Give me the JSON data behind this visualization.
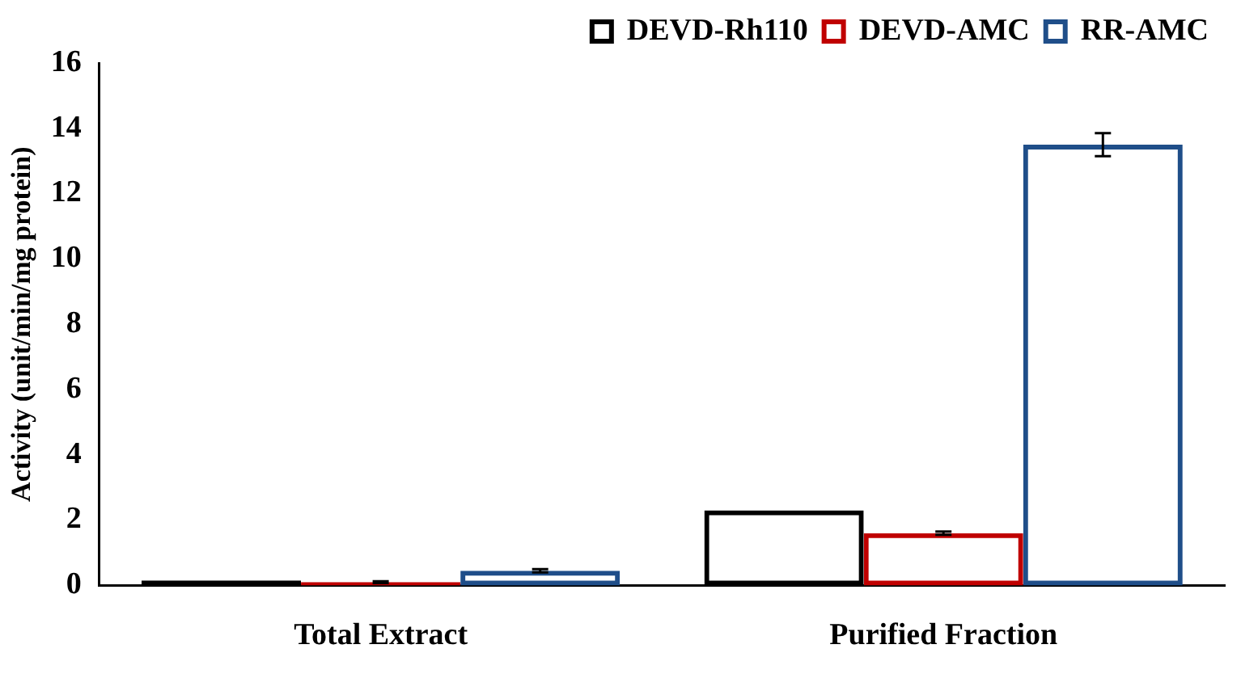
{
  "chart_data": {
    "type": "bar",
    "ylabel": "Activity (unit/min/mg protein)",
    "categories": [
      "Total Extract",
      "Purified Fraction"
    ],
    "series": [
      {
        "name": "DEVD-Rh110",
        "color": "#000000",
        "values": [
          0.15,
          2.3
        ],
        "errors": [
          null,
          null
        ]
      },
      {
        "name": "DEVD-AMC",
        "color": "#c00000",
        "values": [
          0.1,
          1.6
        ],
        "errors": [
          0.03,
          0.05
        ]
      },
      {
        "name": "RR-AMC",
        "color": "#1f4e89",
        "values": [
          0.45,
          13.5
        ],
        "errors": [
          0.05,
          0.35
        ]
      }
    ],
    "ylim": [
      0,
      16
    ],
    "yticks": [
      0,
      2,
      4,
      6,
      8,
      10,
      12,
      14,
      16
    ],
    "grid": false,
    "legend": "top right"
  }
}
